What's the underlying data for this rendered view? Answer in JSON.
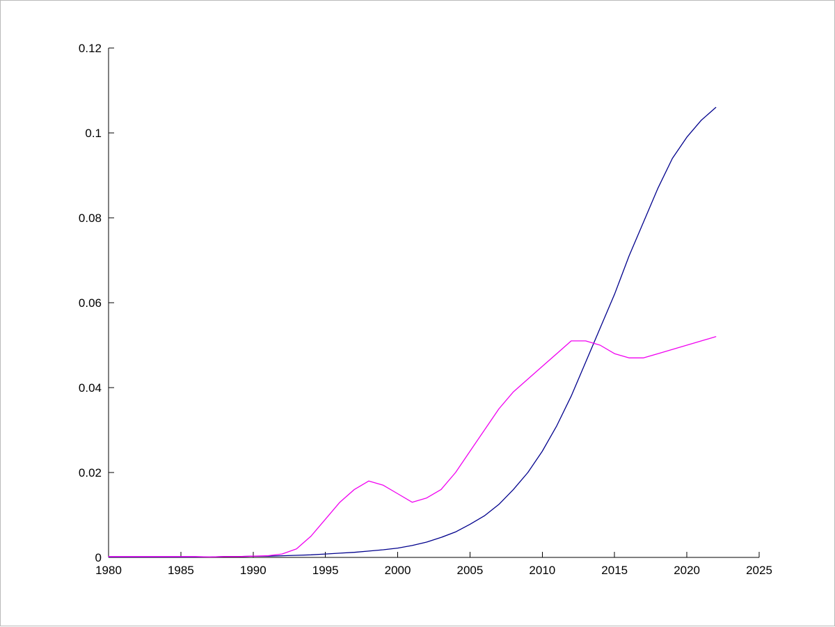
{
  "figure": {
    "title": "",
    "background_color": "#ffffff",
    "frame_color": "#b9b9b9",
    "axis_color": "#000000"
  },
  "chart_data": {
    "type": "line",
    "title": "",
    "xlabel": "",
    "ylabel": "",
    "grid": false,
    "legend": null,
    "xlim": [
      1980,
      2025
    ],
    "ylim": [
      0,
      0.12
    ],
    "x_tick_values": [
      1980,
      1985,
      1990,
      1995,
      2000,
      2005,
      2010,
      2015,
      2020,
      2025
    ],
    "x_tick_labels": [
      "1980",
      "1985",
      "1990",
      "1995",
      "2000",
      "2005",
      "2010",
      "2015",
      "2020",
      "2025"
    ],
    "y_tick_values": [
      0,
      0.02,
      0.04,
      0.06,
      0.08,
      0.1,
      0.12
    ],
    "y_tick_labels": [
      "0",
      "0.02",
      "0.04",
      "0.06",
      "0.08",
      "0.1",
      "0.12"
    ],
    "series": [
      {
        "name": "blue-series",
        "color": "#00008c",
        "width": 1.3,
        "x": [
          1980,
          1981,
          1982,
          1983,
          1984,
          1985,
          1986,
          1987,
          1988,
          1989,
          1990,
          1991,
          1992,
          1993,
          1994,
          1995,
          1996,
          1997,
          1998,
          1999,
          2000,
          2001,
          2002,
          2003,
          2004,
          2005,
          2006,
          2007,
          2008,
          2009,
          2010,
          2011,
          2012,
          2013,
          2014,
          2015,
          2016,
          2017,
          2018,
          2019,
          2020,
          2021,
          2022
        ],
        "y": [
          0.0001,
          0.0001,
          0.0001,
          0.0001,
          0.0001,
          0.0001,
          0.0001,
          0.0001,
          0.0002,
          0.0002,
          0.0003,
          0.0003,
          0.0004,
          0.0005,
          0.0006,
          0.0008,
          0.001,
          0.0012,
          0.0015,
          0.0018,
          0.0022,
          0.0028,
          0.0036,
          0.0047,
          0.006,
          0.0078,
          0.0098,
          0.0125,
          0.016,
          0.02,
          0.025,
          0.031,
          0.038,
          0.046,
          0.054,
          0.062,
          0.071,
          0.079,
          0.087,
          0.094,
          0.099,
          0.103,
          0.106
        ]
      },
      {
        "name": "magenta-series",
        "color": "#f000f0",
        "width": 1.3,
        "x": [
          1980,
          1981,
          1982,
          1983,
          1984,
          1985,
          1986,
          1987,
          1988,
          1989,
          1990,
          1991,
          1992,
          1993,
          1994,
          1995,
          1996,
          1997,
          1998,
          1999,
          2000,
          2001,
          2002,
          2003,
          2004,
          2005,
          2006,
          2007,
          2008,
          2009,
          2010,
          2011,
          2012,
          2013,
          2014,
          2015,
          2016,
          2017,
          2018,
          2019,
          2020,
          2021,
          2022
        ],
        "y": [
          0.0002,
          0.0002,
          0.0002,
          0.0002,
          0.0002,
          0.0002,
          0.0002,
          0.0001,
          0.0002,
          0.0002,
          0.0003,
          0.0004,
          0.0008,
          0.002,
          0.005,
          0.009,
          0.013,
          0.016,
          0.018,
          0.017,
          0.015,
          0.013,
          0.014,
          0.016,
          0.02,
          0.025,
          0.03,
          0.035,
          0.039,
          0.042,
          0.045,
          0.048,
          0.051,
          0.051,
          0.05,
          0.048,
          0.047,
          0.047,
          0.048,
          0.049,
          0.05,
          0.051,
          0.052
        ]
      }
    ]
  }
}
